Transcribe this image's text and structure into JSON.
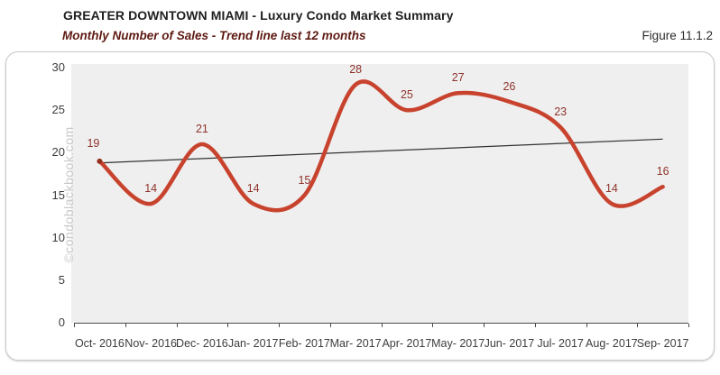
{
  "header": {
    "title": "GREATER DOWNTOWN MIAMI - Luxury Condo Market Summary",
    "subtitle": "Monthly Number of Sales - Trend line last 12 months",
    "figure_label": "Figure 11.1.2"
  },
  "watermark": "©condoblackbook.com",
  "chart_data": {
    "type": "line",
    "smooth": true,
    "title": "Monthly Number of Sales - Trend line last 12 months",
    "categories": [
      "Oct- 2016",
      "Nov- 2016",
      "Dec- 2016",
      "Jan- 2017",
      "Feb- 2017",
      "Mar- 2017",
      "Apr- 2017",
      "May- 2017",
      "Jun- 2017",
      "Jul- 2017",
      "Aug- 2017",
      "Sep- 2017"
    ],
    "values": [
      19,
      14,
      21,
      14,
      15,
      28,
      25,
      27,
      26,
      23,
      14,
      16
    ],
    "data_labels_shown": true,
    "trendline": {
      "type": "linear",
      "start_value": 18.8,
      "end_value": 21.6
    },
    "ylim": [
      0,
      30
    ],
    "yticks": [
      0,
      5,
      10,
      15,
      20,
      25,
      30
    ],
    "grid": false,
    "legend": "none",
    "colors": {
      "line": "#c8432e",
      "point_marker": "#93301f",
      "data_label": "#8e332a",
      "trendline": "#333333",
      "plot_background": "#efefef",
      "axis": "#4a4a4a",
      "tick_label": "#3d3d3d",
      "subtitle_text": "#5e1a12",
      "card_border": "#c8c8c8",
      "watermark": "#c8c8c8"
    }
  }
}
